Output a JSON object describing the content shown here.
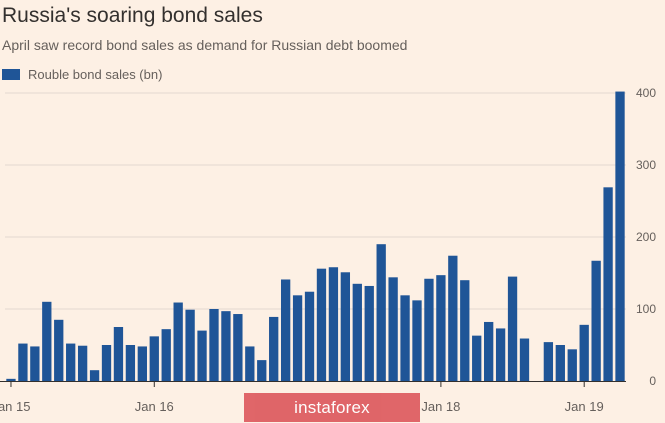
{
  "header": {
    "title": "Russia's soaring bond sales",
    "subtitle": "April saw record bond sales as demand for Russian debt boomed"
  },
  "watermark": "instaforex",
  "colors": {
    "bar": "#1f5597",
    "grid": "#e3d8cf",
    "axis": "#33302e",
    "tick_text": "#66605c"
  },
  "chart_data": {
    "type": "bar",
    "title": "Russia's soaring bond sales",
    "subtitle": "April saw record bond sales as demand for Russian debt boomed",
    "xlabel": "",
    "ylabel": "",
    "ylim": [
      0,
      400
    ],
    "y_ticks": [
      0,
      100,
      200,
      300,
      400
    ],
    "y_axis_side": "right",
    "grid": true,
    "legend_position": "top-left",
    "x_tick_labels": [
      {
        "label": "Jan 15",
        "index": 0
      },
      {
        "label": "Jan 16",
        "index": 12
      },
      {
        "label": "Jan 18",
        "index": 36
      },
      {
        "label": "Jan 19",
        "index": 48
      }
    ],
    "categories": [
      "Jan 2015",
      "Feb 2015",
      "Mar 2015",
      "Apr 2015",
      "May 2015",
      "Jun 2015",
      "Jul 2015",
      "Aug 2015",
      "Sep 2015",
      "Oct 2015",
      "Nov 2015",
      "Dec 2015",
      "Jan 2016",
      "Feb 2016",
      "Mar 2016",
      "Apr 2016",
      "May 2016",
      "Jun 2016",
      "Jul 2016",
      "Aug 2016",
      "Sep 2016",
      "Oct 2016",
      "Nov 2016",
      "Dec 2016",
      "Jan 2017",
      "Feb 2017",
      "Mar 2017",
      "Apr 2017",
      "May 2017",
      "Jun 2017",
      "Jul 2017",
      "Aug 2017",
      "Sep 2017",
      "Oct 2017",
      "Nov 2017",
      "Dec 2017",
      "Jan 2018",
      "Feb 2018",
      "Mar 2018",
      "Apr 2018",
      "May 2018",
      "Jun 2018",
      "Jul 2018",
      "Aug 2018",
      "Sep 2018",
      "Oct 2018",
      "Nov 2018",
      "Dec 2018",
      "Jan 2019",
      "Feb 2019",
      "Mar 2019",
      "Apr 2019"
    ],
    "series": [
      {
        "name": "Rouble bond sales (bn)",
        "values": [
          3,
          52,
          48,
          110,
          85,
          52,
          49,
          15,
          50,
          75,
          50,
          48,
          62,
          72,
          109,
          99,
          70,
          100,
          97,
          93,
          48,
          29,
          89,
          141,
          119,
          124,
          156,
          158,
          151,
          135,
          132,
          190,
          144,
          119,
          112,
          142,
          147,
          174,
          140,
          63,
          82,
          73,
          145,
          59,
          0,
          54,
          50,
          44,
          78,
          167,
          269,
          402
        ]
      }
    ]
  }
}
